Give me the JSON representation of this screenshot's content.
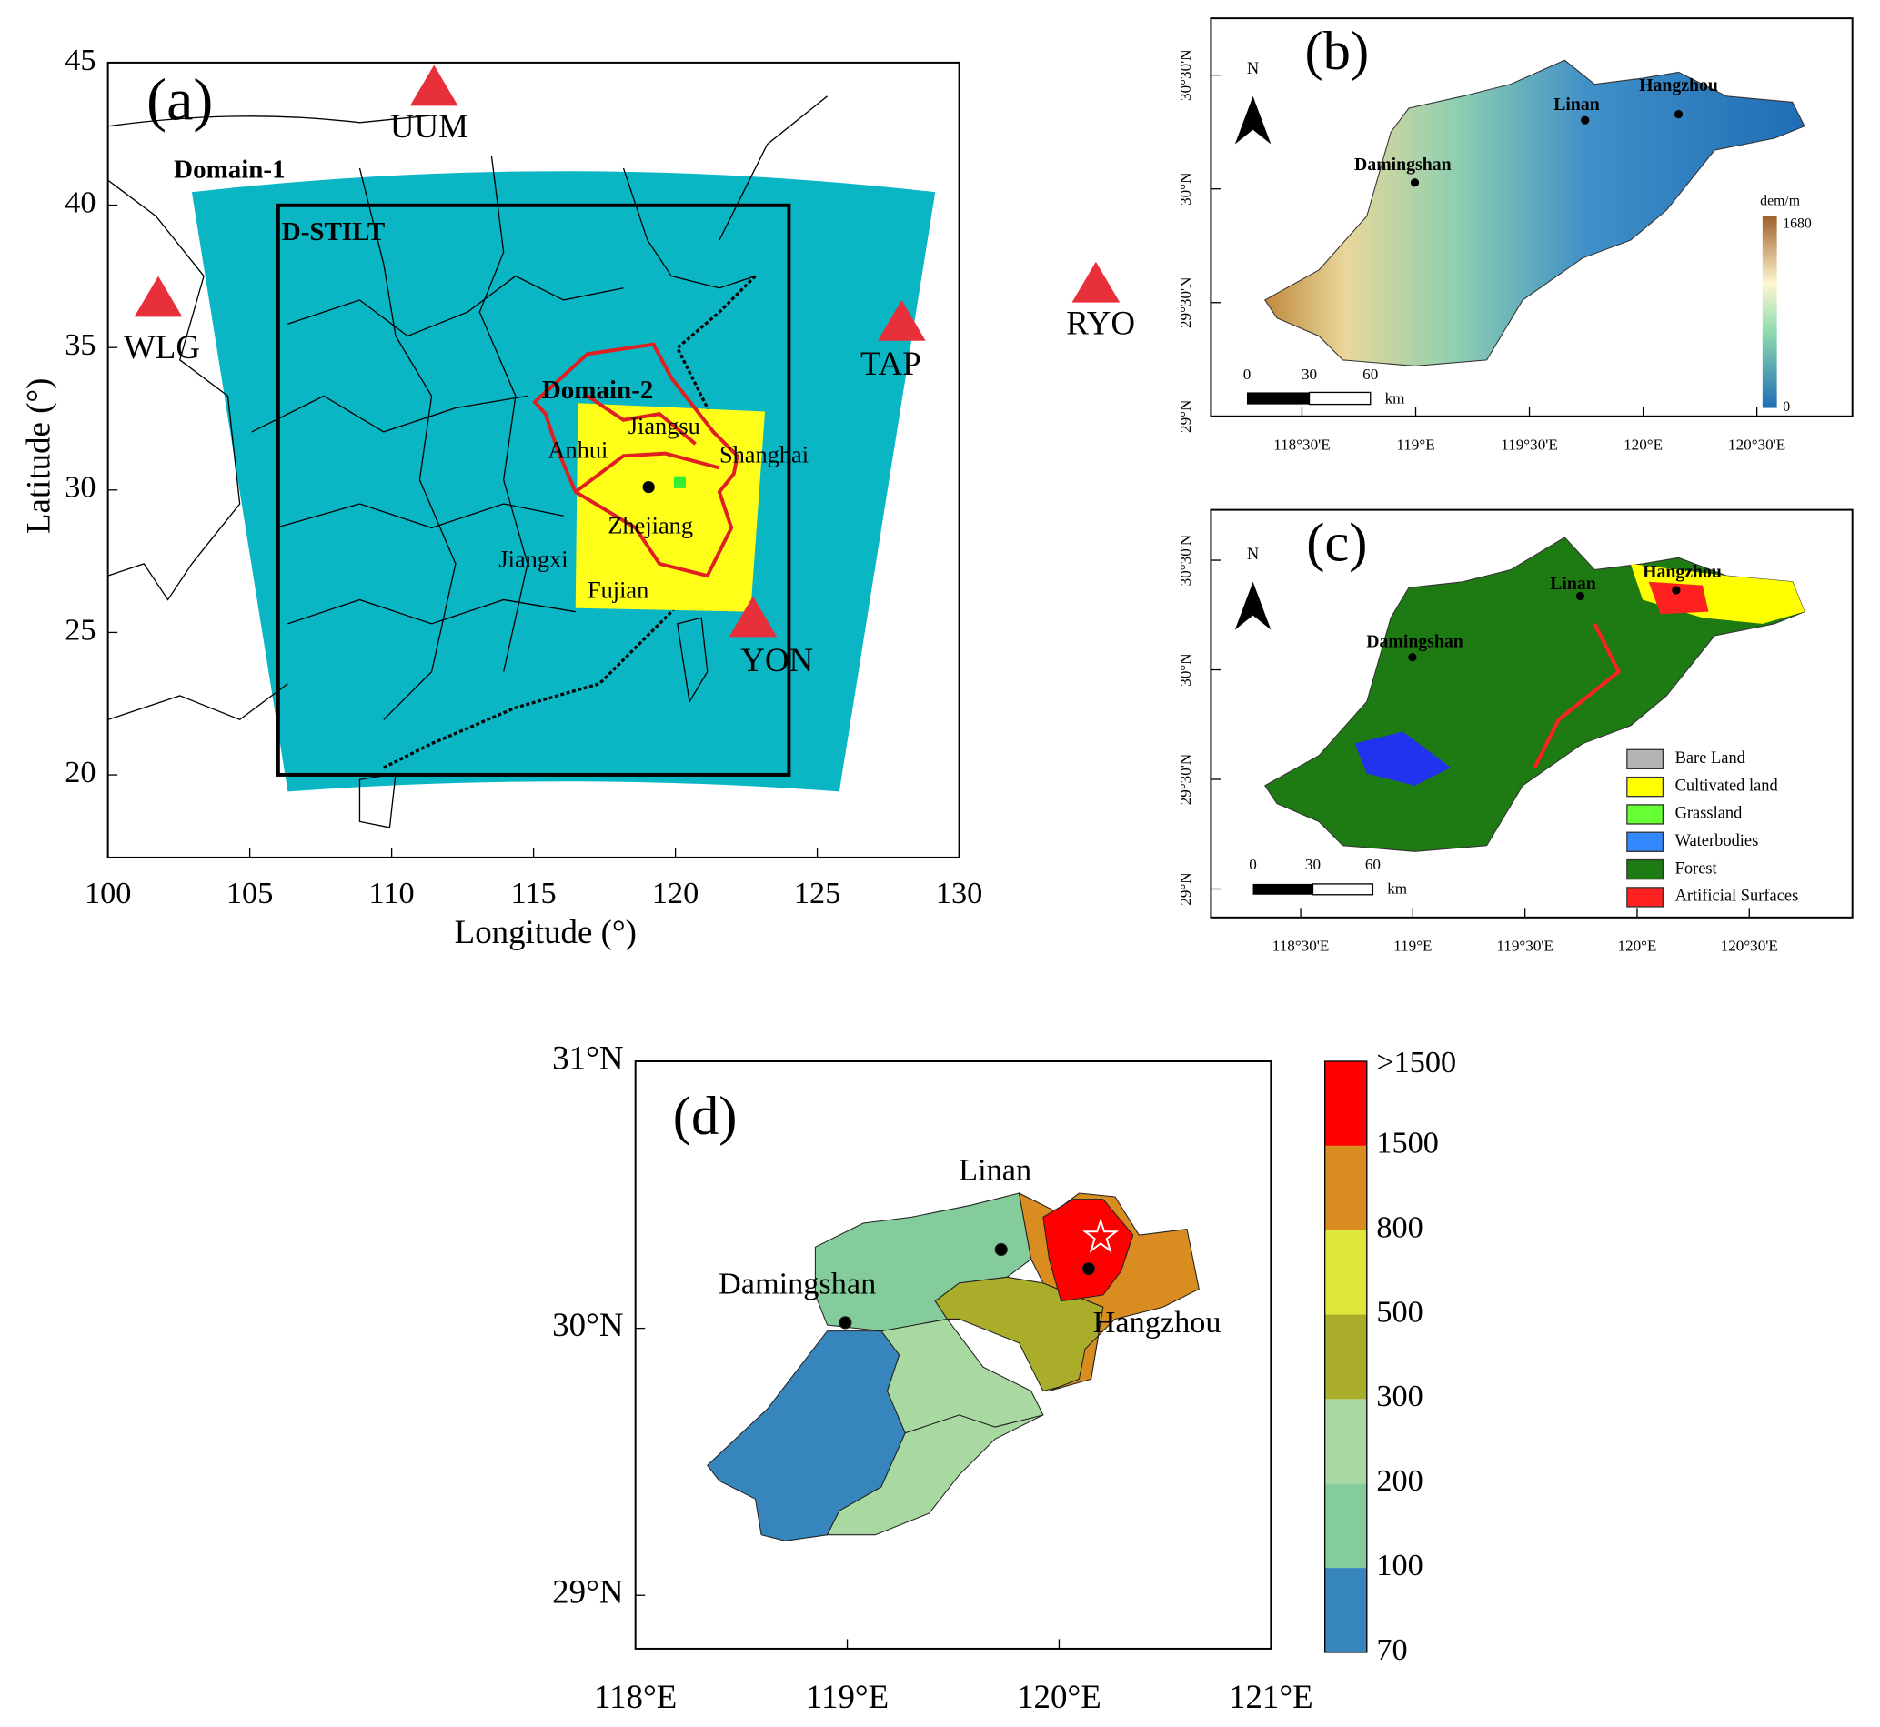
{
  "panel_a": {
    "label": "(a)",
    "xlabel": "Longitude (°)",
    "ylabel": "Latitude (°)",
    "xlim": [
      100,
      130
    ],
    "ylim": [
      17.1,
      45
    ],
    "xticks": [
      100,
      105,
      110,
      115,
      120,
      125,
      130
    ],
    "yticks": [
      20,
      25,
      30,
      35,
      40,
      45
    ],
    "annotations": [
      "Domain-1",
      "D-STILT",
      "Domain-2",
      "Anhui",
      "Jiangsu",
      "Shanghai",
      "Zhejiang",
      "Jiangxi",
      "Fujian"
    ],
    "stations": [
      "UUM",
      "WLG",
      "TAP",
      "RYO",
      "YON"
    ]
  },
  "panel_b": {
    "label": "(b)",
    "north": "N",
    "places": [
      "Hangzhou",
      "Linan",
      "Damingshan"
    ],
    "xlim": [
      118.1,
      120.92
    ],
    "ylim": [
      29,
      30.75
    ],
    "xticks": [
      {
        "value": 118.5,
        "label": "118°30'E"
      },
      {
        "value": 119,
        "label": "119°E"
      },
      {
        "value": 119.5,
        "label": "119°30'E"
      },
      {
        "value": 120,
        "label": "120°E"
      },
      {
        "value": 120.5,
        "label": "120°30'E"
      }
    ],
    "yticks": [
      {
        "value": 29,
        "label": "29°N"
      },
      {
        "value": 29.5,
        "label": "29°30'N"
      },
      {
        "value": 30,
        "label": "30°N"
      },
      {
        "value": 30.5,
        "label": "30°30'N"
      }
    ],
    "scale_labels": [
      0,
      30,
      60
    ],
    "scale_unit": "km",
    "colorbar": {
      "title": "dem/m",
      "max": 1680,
      "min": 0
    }
  },
  "panel_c": {
    "label": "(c)",
    "north": "N",
    "places": [
      "Hangzhou",
      "Linan",
      "Damingshan"
    ],
    "xlim": [
      118.1,
      120.96
    ],
    "ylim": [
      28.87,
      30.73
    ],
    "xticks": [
      {
        "value": 118.5,
        "label": "118°30'E"
      },
      {
        "value": 119,
        "label": "119°E"
      },
      {
        "value": 119.5,
        "label": "119°30'E"
      },
      {
        "value": 120,
        "label": "120°E"
      },
      {
        "value": 120.5,
        "label": "120°30'E"
      }
    ],
    "yticks": [
      {
        "value": 29,
        "label": "29°N"
      },
      {
        "value": 29.5,
        "label": "29°30'N"
      },
      {
        "value": 30,
        "label": "30°N"
      },
      {
        "value": 30.5,
        "label": "30°30'N"
      }
    ],
    "scale_labels": [
      0,
      30,
      60
    ],
    "scale_unit": "km",
    "legend": [
      {
        "name": "Bare Land",
        "color": "#b4b4b4"
      },
      {
        "name": "Cultivated land",
        "color": "#ffff00"
      },
      {
        "name": "Grassland",
        "color": "#66ff33"
      },
      {
        "name": "Waterbodies",
        "color": "#3388ff"
      },
      {
        "name": "Forest",
        "color": "#1e7a12"
      },
      {
        "name": "Artificial Surfaces",
        "color": "#ff2020"
      }
    ]
  },
  "panel_d": {
    "label": "(d)",
    "places": [
      "Linan",
      "Damingshan",
      "Hangzhou"
    ],
    "xlim": [
      118,
      121
    ],
    "ylim": [
      28.8,
      31
    ],
    "xticks": [
      {
        "value": 118,
        "label": "118°E"
      },
      {
        "value": 119,
        "label": "119°E"
      },
      {
        "value": 120,
        "label": "120°E"
      },
      {
        "value": 121,
        "label": "121°E"
      }
    ],
    "yticks": [
      {
        "value": 29,
        "label": "29°N"
      },
      {
        "value": 30,
        "label": "30°N"
      },
      {
        "value": 31,
        "label": "31°N"
      }
    ],
    "colorbar": {
      "bounds": [
        70,
        100,
        200,
        300,
        500,
        800,
        1500
      ],
      "top_label": ">1500",
      "colors": [
        "#3685bd",
        "#85cc9c",
        "#a8d9a0",
        "#a9ad2a",
        "#dfe83a",
        "#d98c1f",
        "#ff0000"
      ]
    }
  }
}
